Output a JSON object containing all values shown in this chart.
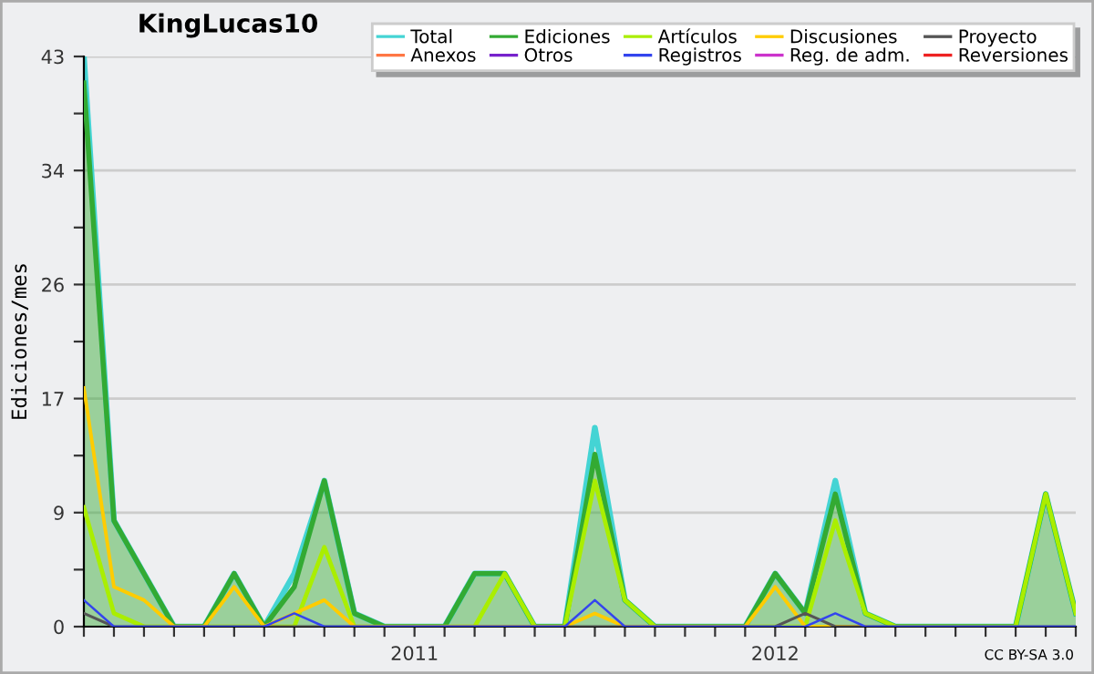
{
  "chart_data": {
    "type": "line",
    "title": "KingLucas10",
    "ylabel": "Ediciones/mes",
    "annotations": [
      "CC BY-SA 3.0"
    ],
    "x": [
      "2010-02",
      "2010-03",
      "2010-04",
      "2010-05",
      "2010-06",
      "2010-07",
      "2010-08",
      "2010-09",
      "2010-10",
      "2010-11",
      "2010-12",
      "2011-01",
      "2011-02",
      "2011-03",
      "2011-04",
      "2011-05",
      "2011-06",
      "2011-07",
      "2011-08",
      "2011-09",
      "2011-10",
      "2011-11",
      "2011-12",
      "2012-01",
      "2012-02",
      "2012-03",
      "2012-04",
      "2012-05",
      "2012-06",
      "2012-07",
      "2012-08",
      "2012-09",
      "2012-10",
      "2012-11"
    ],
    "xlim": [
      "2010-02",
      "2012-11"
    ],
    "xticks": [
      {
        "value": "2010-02",
        "label": null
      },
      {
        "value": "2010-03",
        "label": null
      },
      {
        "value": "2010-04",
        "label": null
      },
      {
        "value": "2010-05",
        "label": null
      },
      {
        "value": "2010-06",
        "label": null
      },
      {
        "value": "2010-07",
        "label": null
      },
      {
        "value": "2010-08",
        "label": null
      },
      {
        "value": "2010-09",
        "label": null
      },
      {
        "value": "2010-10",
        "label": null
      },
      {
        "value": "2010-11",
        "label": null
      },
      {
        "value": "2010-12",
        "label": null
      },
      {
        "value": "2011-01",
        "label": "2011"
      },
      {
        "value": "2011-02",
        "label": null
      },
      {
        "value": "2011-03",
        "label": null
      },
      {
        "value": "2011-04",
        "label": null
      },
      {
        "value": "2011-05",
        "label": null
      },
      {
        "value": "2011-06",
        "label": null
      },
      {
        "value": "2011-07",
        "label": null
      },
      {
        "value": "2011-08",
        "label": null
      },
      {
        "value": "2011-09",
        "label": null
      },
      {
        "value": "2011-10",
        "label": null
      },
      {
        "value": "2011-11",
        "label": null
      },
      {
        "value": "2011-12",
        "label": null
      },
      {
        "value": "2012-01",
        "label": "2012"
      },
      {
        "value": "2012-02",
        "label": null
      },
      {
        "value": "2012-03",
        "label": null
      },
      {
        "value": "2012-04",
        "label": null
      },
      {
        "value": "2012-05",
        "label": null
      },
      {
        "value": "2012-06",
        "label": null
      },
      {
        "value": "2012-07",
        "label": null
      },
      {
        "value": "2012-08",
        "label": null
      },
      {
        "value": "2012-09",
        "label": null
      },
      {
        "value": "2012-10",
        "label": null
      },
      {
        "value": "2012-11",
        "label": null
      }
    ],
    "ylim": [
      0,
      43
    ],
    "yticks": [
      0,
      {
        "value": 4.3,
        "label": null
      },
      {
        "value": 8.6,
        "label": "9"
      },
      {
        "value": 12.9,
        "label": null
      },
      {
        "value": 17.2,
        "label": "17"
      },
      {
        "value": 21.5,
        "label": null
      },
      {
        "value": 25.8,
        "label": "26"
      },
      {
        "value": 30.1,
        "label": null
      },
      {
        "value": 34.4,
        "label": "34"
      },
      {
        "value": 38.7,
        "label": null
      },
      43
    ],
    "grid": "y",
    "legend": "top right",
    "series": [
      {
        "name": "Total",
        "color": "#44d4d4",
        "values": [
          43,
          8,
          4,
          0,
          0,
          4,
          0,
          4,
          11,
          1,
          0,
          0,
          0,
          4,
          4,
          0,
          0,
          15,
          2,
          0,
          0,
          0,
          0,
          4,
          1,
          11,
          1,
          0,
          0,
          0,
          0,
          0,
          10,
          1
        ]
      },
      {
        "name": "Ediciones",
        "color": "#33aa33",
        "type": "area",
        "values": [
          41,
          8,
          4,
          0,
          0,
          4,
          0,
          3,
          11,
          1,
          0,
          0,
          0,
          4,
          4,
          0,
          0,
          13,
          2,
          0,
          0,
          0,
          0,
          4,
          1,
          10,
          1,
          0,
          0,
          0,
          0,
          0,
          10,
          1
        ]
      },
      {
        "name": "Artículos",
        "color": "#aaee00",
        "values": [
          9,
          1,
          0,
          0,
          0,
          0,
          0,
          0,
          6,
          0,
          0,
          0,
          0,
          0,
          4,
          0,
          0,
          11,
          2,
          0,
          0,
          0,
          0,
          0,
          0,
          8,
          1,
          0,
          0,
          0,
          0,
          0,
          10,
          1
        ]
      },
      {
        "name": "Discusiones",
        "color": "#ffcc00",
        "values": [
          18,
          3,
          2,
          0,
          0,
          3,
          0,
          1,
          2,
          0,
          0,
          0,
          0,
          0,
          0,
          0,
          0,
          1,
          0,
          0,
          0,
          0,
          0,
          3,
          0,
          0,
          0,
          null,
          null,
          null,
          null,
          null,
          null,
          null
        ]
      },
      {
        "name": "Proyecto",
        "color": "#555555",
        "values": [
          1,
          0,
          0,
          0,
          0,
          0,
          0,
          0,
          0,
          0,
          0,
          0,
          0,
          0,
          0,
          0,
          0,
          0,
          0,
          0,
          0,
          0,
          0,
          0,
          1,
          0,
          0,
          0,
          0,
          0,
          0,
          0,
          0,
          0
        ]
      },
      {
        "name": "Anexos",
        "color": "#ff7744",
        "values": [
          null,
          null,
          null,
          null,
          null,
          null,
          null,
          null,
          null,
          null,
          null,
          null,
          null,
          null,
          null,
          null,
          null,
          null,
          null,
          null,
          null,
          null,
          null,
          null,
          null,
          null,
          null,
          null,
          null,
          null,
          null,
          null,
          null,
          null
        ]
      },
      {
        "name": "Otros",
        "color": "#7722cc",
        "values": [
          null,
          null,
          null,
          null,
          null,
          null,
          null,
          null,
          null,
          null,
          null,
          null,
          null,
          null,
          null,
          null,
          null,
          null,
          null,
          null,
          null,
          null,
          null,
          null,
          null,
          null,
          null,
          null,
          null,
          null,
          null,
          null,
          null,
          null
        ]
      },
      {
        "name": "Registros",
        "color": "#3344ee",
        "values": [
          2,
          0,
          0,
          0,
          0,
          0,
          0,
          1,
          0,
          0,
          0,
          0,
          0,
          0,
          0,
          0,
          0,
          2,
          0,
          0,
          0,
          0,
          0,
          0,
          0,
          1,
          0,
          0,
          0,
          0,
          0,
          0,
          0,
          0
        ]
      },
      {
        "name": "Reg. de adm.",
        "color": "#cc33cc",
        "values": [
          null,
          null,
          null,
          null,
          null,
          null,
          null,
          null,
          null,
          null,
          null,
          null,
          null,
          null,
          null,
          null,
          null,
          null,
          null,
          null,
          null,
          null,
          null,
          null,
          null,
          null,
          null,
          null,
          null,
          null,
          null,
          null,
          null,
          null
        ]
      },
      {
        "name": "Reversiones",
        "color": "#ee2222",
        "values": [
          null,
          null,
          null,
          null,
          null,
          null,
          null,
          null,
          null,
          null,
          null,
          null,
          null,
          null,
          null,
          null,
          null,
          null,
          null,
          null,
          null,
          null,
          null,
          null,
          null,
          null,
          null,
          null,
          null,
          null,
          null,
          null,
          null,
          null
        ]
      }
    ]
  }
}
